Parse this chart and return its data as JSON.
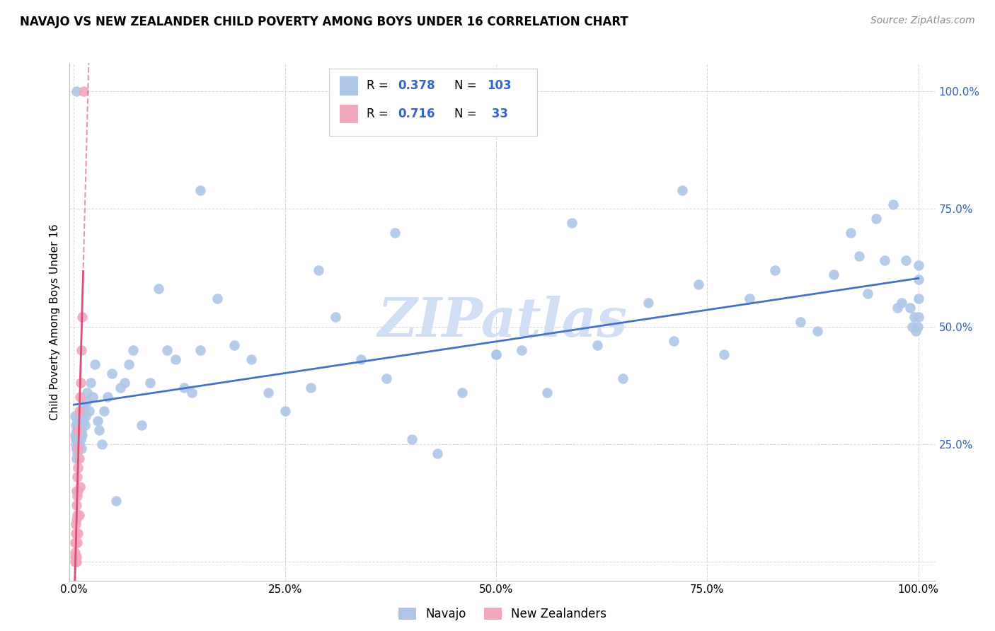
{
  "title": "NAVAJO VS NEW ZEALANDER CHILD POVERTY AMONG BOYS UNDER 16 CORRELATION CHART",
  "source": "Source: ZipAtlas.com",
  "ylabel": "Child Poverty Among Boys Under 16",
  "navajo_R": 0.378,
  "navajo_N": 103,
  "nz_R": 0.716,
  "nz_N": 33,
  "navajo_color": "#adc6e8",
  "nz_color": "#f2a8bc",
  "navajo_line_color": "#4472c4",
  "nz_line_color": "#d94f7a",
  "watermark_color": "#d0dff5",
  "navajo_x": [
    0.001,
    0.001,
    0.002,
    0.002,
    0.002,
    0.003,
    0.003,
    0.003,
    0.004,
    0.004,
    0.004,
    0.005,
    0.005,
    0.006,
    0.006,
    0.007,
    0.007,
    0.008,
    0.008,
    0.009,
    0.009,
    0.01,
    0.01,
    0.011,
    0.012,
    0.013,
    0.014,
    0.015,
    0.016,
    0.018,
    0.02,
    0.022,
    0.025,
    0.028,
    0.03,
    0.033,
    0.036,
    0.04,
    0.045,
    0.05,
    0.055,
    0.06,
    0.065,
    0.07,
    0.08,
    0.09,
    0.1,
    0.11,
    0.12,
    0.13,
    0.14,
    0.15,
    0.17,
    0.19,
    0.21,
    0.23,
    0.25,
    0.28,
    0.31,
    0.34,
    0.37,
    0.4,
    0.43,
    0.46,
    0.5,
    0.53,
    0.56,
    0.59,
    0.62,
    0.65,
    0.68,
    0.71,
    0.74,
    0.77,
    0.8,
    0.83,
    0.86,
    0.88,
    0.9,
    0.92,
    0.93,
    0.94,
    0.95,
    0.96,
    0.97,
    0.975,
    0.98,
    0.985,
    0.99,
    0.993,
    0.995,
    0.997,
    0.999,
    1.0,
    1.0,
    1.0,
    1.0,
    0.003,
    0.29,
    0.5,
    0.15,
    0.38,
    0.72
  ],
  "navajo_y": [
    0.27,
    0.31,
    0.26,
    0.29,
    0.25,
    0.24,
    0.28,
    0.22,
    0.27,
    0.23,
    0.3,
    0.26,
    0.29,
    0.25,
    0.28,
    0.27,
    0.3,
    0.26,
    0.31,
    0.24,
    0.28,
    0.27,
    0.32,
    0.3,
    0.33,
    0.29,
    0.31,
    0.34,
    0.36,
    0.32,
    0.38,
    0.35,
    0.42,
    0.3,
    0.28,
    0.25,
    0.32,
    0.35,
    0.4,
    0.13,
    0.37,
    0.38,
    0.42,
    0.45,
    0.29,
    0.38,
    0.58,
    0.45,
    0.43,
    0.37,
    0.36,
    0.45,
    0.56,
    0.46,
    0.43,
    0.36,
    0.32,
    0.37,
    0.52,
    0.43,
    0.39,
    0.26,
    0.23,
    0.36,
    0.44,
    0.45,
    0.36,
    0.72,
    0.46,
    0.39,
    0.55,
    0.47,
    0.59,
    0.44,
    0.56,
    0.62,
    0.51,
    0.49,
    0.61,
    0.7,
    0.65,
    0.57,
    0.73,
    0.64,
    0.76,
    0.54,
    0.55,
    0.64,
    0.54,
    0.5,
    0.52,
    0.49,
    0.5,
    0.63,
    0.56,
    0.52,
    0.6,
    1.0,
    0.62,
    0.44,
    0.79,
    0.7,
    0.79
  ],
  "nz_x": [
    0.001,
    0.001,
    0.001,
    0.001,
    0.002,
    0.002,
    0.002,
    0.002,
    0.002,
    0.003,
    0.003,
    0.003,
    0.003,
    0.003,
    0.003,
    0.004,
    0.004,
    0.004,
    0.004,
    0.005,
    0.005,
    0.005,
    0.005,
    0.005,
    0.006,
    0.006,
    0.006,
    0.007,
    0.007,
    0.008,
    0.009,
    0.01,
    0.011
  ],
  "nz_y": [
    0.0,
    0.01,
    0.02,
    0.04,
    0.0,
    0.01,
    0.04,
    0.06,
    0.08,
    0.0,
    0.01,
    0.06,
    0.09,
    0.12,
    0.15,
    0.04,
    0.1,
    0.14,
    0.18,
    0.06,
    0.15,
    0.2,
    0.24,
    0.28,
    0.1,
    0.22,
    0.32,
    0.16,
    0.35,
    0.38,
    0.45,
    0.52,
    1.0
  ],
  "xlim": [
    0.0,
    1.0
  ],
  "ylim": [
    0.0,
    1.0
  ],
  "xticks": [
    0.0,
    0.25,
    0.5,
    0.75,
    1.0
  ],
  "yticks": [
    0.0,
    0.25,
    0.5,
    0.75,
    1.0
  ],
  "xtick_labels": [
    "0.0%",
    "25.0%",
    "50.0%",
    "75.0%",
    "100.0%"
  ],
  "ytick_labels": [
    "",
    "25.0%",
    "50.0%",
    "75.0%",
    "100.0%"
  ]
}
